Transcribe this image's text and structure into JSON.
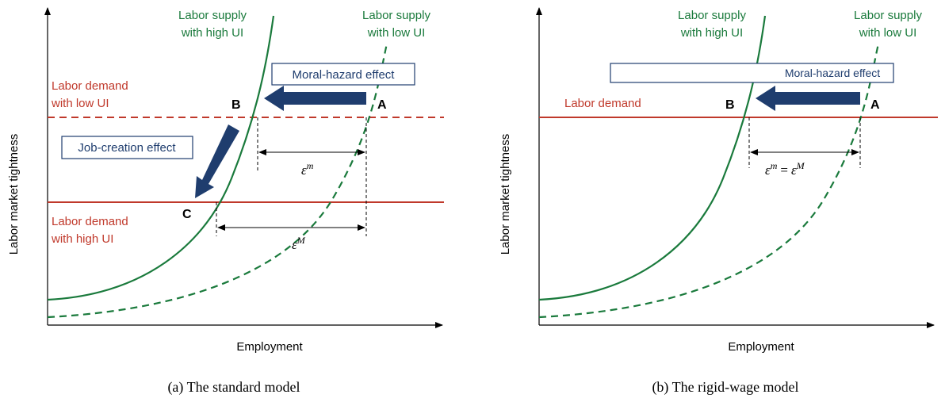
{
  "panels": [
    {
      "caption": "(a)  The standard model",
      "y_axis_label": "Labor market tightness",
      "x_axis_label": "Employment",
      "supply_high": [
        "Labor supply",
        "with high UI"
      ],
      "supply_low": [
        "Labor supply",
        "with low UI"
      ],
      "demand_low": [
        "Labor demand",
        "with low UI"
      ],
      "demand_high": [
        "Labor demand",
        "with high UI"
      ],
      "points": [
        "B",
        "A",
        "C"
      ],
      "moral_hazard": "Moral-hazard effect",
      "job_creation": "Job-creation effect",
      "eps_small": [
        "ε",
        "m"
      ],
      "eps_large": [
        "ε",
        "M"
      ]
    },
    {
      "caption": "(b)  The rigid-wage model",
      "y_axis_label": "Labor market tightness",
      "x_axis_label": "Employment",
      "supply_high": [
        "Labor supply",
        "with high UI"
      ],
      "supply_low": [
        "Labor supply",
        "with low UI"
      ],
      "demand": "Labor demand",
      "points": [
        "B",
        "A"
      ],
      "moral_hazard": "Moral-hazard effect",
      "eps_small": [
        "ε",
        "m"
      ],
      "eq": "=",
      "eps_large": [
        "ε",
        "M"
      ]
    }
  ]
}
